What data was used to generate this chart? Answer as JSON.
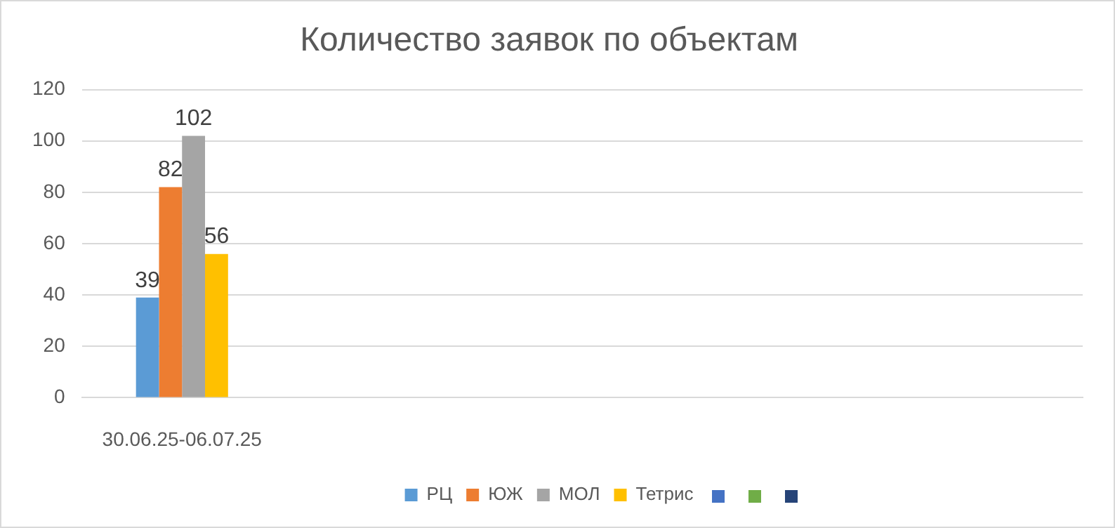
{
  "chart_data": {
    "type": "bar",
    "title": "Количество заявок по объектам",
    "categories": [
      "30.06.25-06.07.25",
      null,
      null,
      null,
      null
    ],
    "series": [
      {
        "name": "РЦ",
        "color": "#5b9bd5",
        "values": [
          39,
          null,
          null,
          null,
          null
        ]
      },
      {
        "name": "ЮЖ",
        "color": "#ed7d31",
        "values": [
          82,
          null,
          null,
          null,
          null
        ]
      },
      {
        "name": "МОЛ",
        "color": "#a5a5a5",
        "values": [
          102,
          null,
          null,
          null,
          null
        ]
      },
      {
        "name": "Тетрис",
        "color": "#ffc000",
        "values": [
          56,
          null,
          null,
          null,
          null
        ]
      }
    ],
    "ylim": [
      0,
      120
    ],
    "yticks": [
      0,
      20,
      40,
      60,
      80,
      100,
      120
    ],
    "grid": "y",
    "legend": "bottom",
    "data_labels": true
  }
}
